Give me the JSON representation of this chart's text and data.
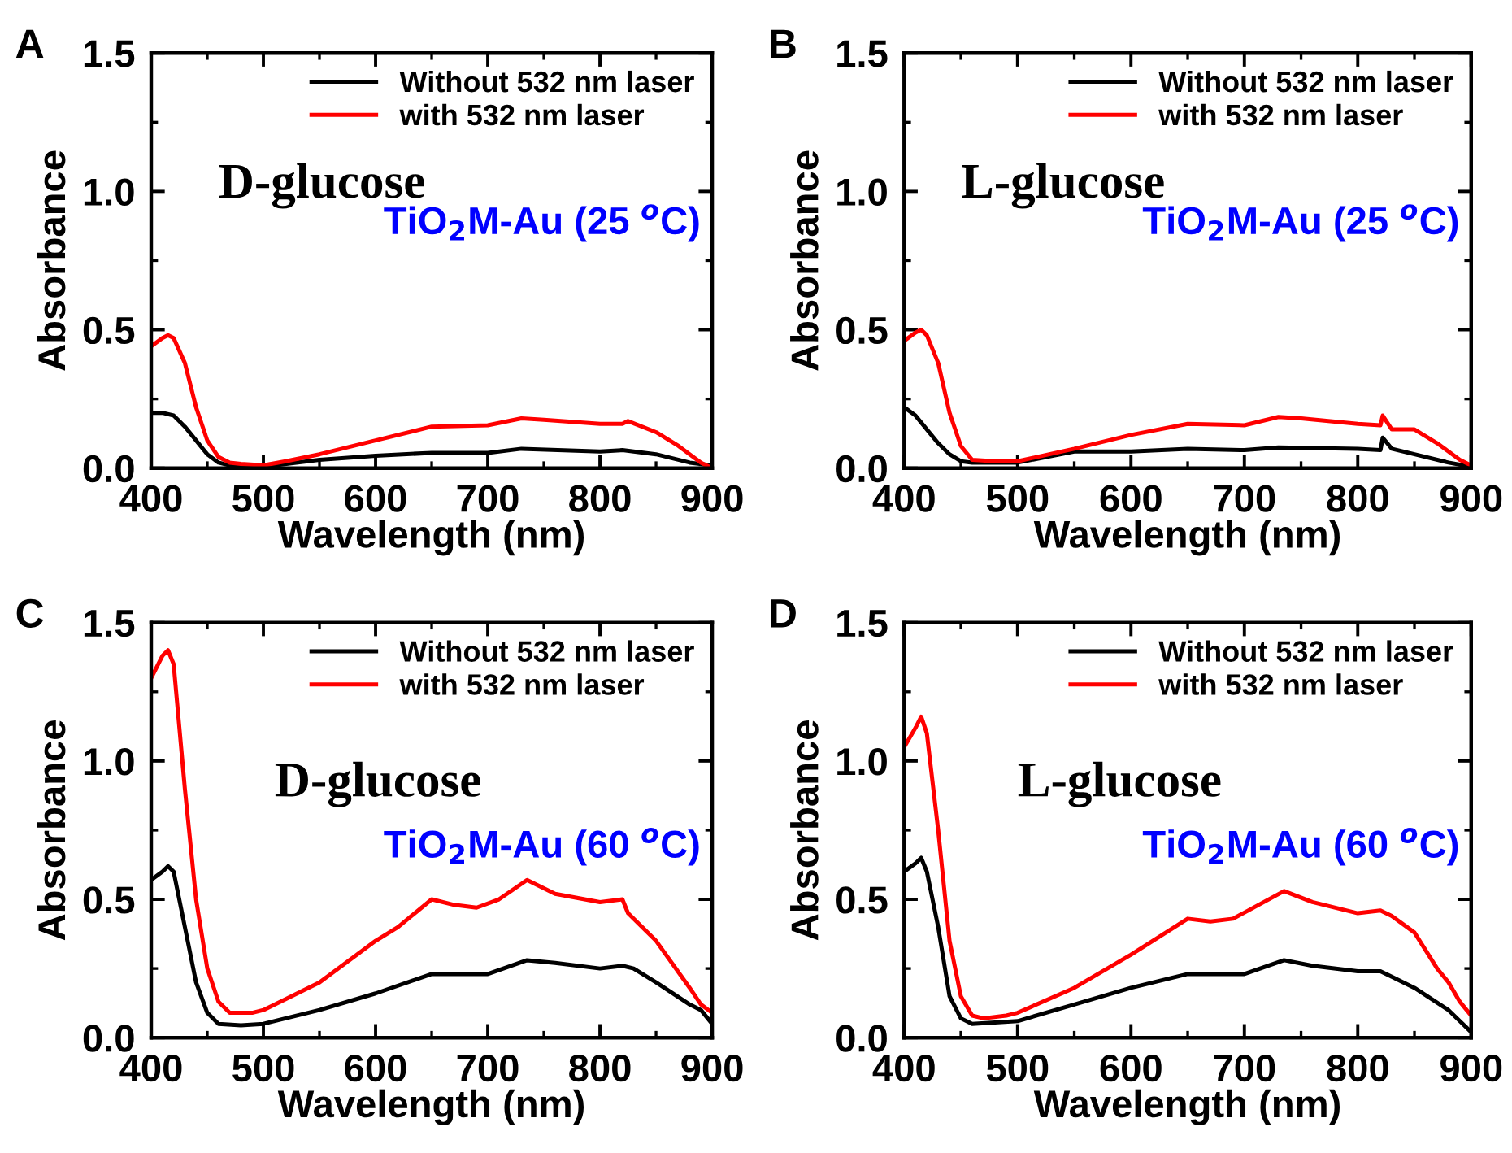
{
  "chart_data": [
    {
      "type": "line",
      "title": "A",
      "xlabel": "Wavelength (nm)",
      "ylabel": "Absorbance",
      "xlim": [
        400,
        900
      ],
      "ylim": [
        0,
        1.5
      ],
      "xticks": [
        400,
        500,
        600,
        700,
        800,
        900
      ],
      "yticks": [
        {
          "value": 0,
          "label": "0.0"
        },
        {
          "value": 0.5,
          "label": "0.5"
        },
        {
          "value": 1.0,
          "label": "1.0"
        },
        {
          "value": 1.5,
          "label": "1.5"
        }
      ],
      "legend": "top right",
      "annotations": [
        "D-glucose",
        "TiO$_{2}$M-Au (25 $^{o}$C)"
      ],
      "series": [
        {
          "name": "Without 532 nm laser",
          "color": "#000000",
          "x": [
            400,
            410,
            420,
            430,
            440,
            450,
            460,
            470,
            500,
            550,
            600,
            650,
            700,
            730,
            800,
            820,
            850,
            880,
            900
          ],
          "values": [
            0.2,
            0.2,
            0.19,
            0.15,
            0.1,
            0.05,
            0.02,
            0.01,
            0.005,
            0.03,
            0.045,
            0.055,
            0.055,
            0.07,
            0.06,
            0.065,
            0.05,
            0.02,
            0.01
          ]
        },
        {
          "name": "with 532 nm laser",
          "color": "#ff0000",
          "x": [
            400,
            410,
            415,
            420,
            430,
            440,
            450,
            460,
            470,
            480,
            500,
            520,
            550,
            600,
            650,
            700,
            730,
            750,
            800,
            820,
            825,
            850,
            870,
            880,
            890,
            900
          ],
          "values": [
            0.44,
            0.47,
            0.48,
            0.47,
            0.38,
            0.22,
            0.1,
            0.04,
            0.02,
            0.015,
            0.01,
            0.025,
            0.05,
            0.1,
            0.15,
            0.155,
            0.18,
            0.175,
            0.16,
            0.16,
            0.17,
            0.13,
            0.08,
            0.05,
            0.02,
            0.0
          ]
        }
      ]
    },
    {
      "type": "line",
      "title": "B",
      "xlabel": "Wavelength (nm)",
      "ylabel": "Absorbance",
      "xlim": [
        400,
        900
      ],
      "ylim": [
        0,
        1.5
      ],
      "xticks": [
        400,
        500,
        600,
        700,
        800,
        900
      ],
      "yticks": [
        {
          "value": 0,
          "label": "0.0"
        },
        {
          "value": 0.5,
          "label": "0.5"
        },
        {
          "value": 1.0,
          "label": "1.0"
        },
        {
          "value": 1.5,
          "label": "1.5"
        }
      ],
      "legend": "top right",
      "annotations": [
        "L-glucose",
        "TiO$_{2}$M-Au (25 $^{o}$C)"
      ],
      "series": [
        {
          "name": "Without 532 nm laser",
          "color": "#000000",
          "x": [
            400,
            410,
            420,
            430,
            440,
            450,
            460,
            500,
            550,
            600,
            650,
            700,
            730,
            800,
            820,
            822,
            830,
            850,
            880,
            900
          ],
          "values": [
            0.22,
            0.19,
            0.14,
            0.09,
            0.05,
            0.025,
            0.02,
            0.02,
            0.06,
            0.06,
            0.07,
            0.065,
            0.075,
            0.07,
            0.065,
            0.11,
            0.07,
            0.05,
            0.02,
            0.005
          ]
        },
        {
          "name": "with 532 nm laser",
          "color": "#ff0000",
          "x": [
            400,
            410,
            415,
            420,
            430,
            440,
            450,
            460,
            480,
            500,
            550,
            600,
            650,
            700,
            730,
            750,
            800,
            820,
            822,
            830,
            850,
            870,
            880,
            890,
            900
          ],
          "values": [
            0.46,
            0.49,
            0.5,
            0.48,
            0.38,
            0.2,
            0.08,
            0.03,
            0.025,
            0.025,
            0.07,
            0.12,
            0.16,
            0.155,
            0.185,
            0.18,
            0.16,
            0.155,
            0.19,
            0.14,
            0.14,
            0.09,
            0.06,
            0.03,
            0.01
          ]
        }
      ]
    },
    {
      "type": "line",
      "title": "C",
      "xlabel": "Wavelength (nm)",
      "ylabel": "Absorbance",
      "xlim": [
        400,
        900
      ],
      "ylim": [
        0,
        1.5
      ],
      "xticks": [
        400,
        500,
        600,
        700,
        800,
        900
      ],
      "yticks": [
        {
          "value": 0,
          "label": "0.0"
        },
        {
          "value": 0.5,
          "label": "0.5"
        },
        {
          "value": 1.0,
          "label": "1.0"
        },
        {
          "value": 1.5,
          "label": "1.5"
        }
      ],
      "legend": "top right",
      "annotations": [
        "D-glucose",
        "TiO$_{2}$M-Au (60 $^{o}$C)"
      ],
      "series": [
        {
          "name": "Without 532 nm laser",
          "color": "#000000",
          "x": [
            400,
            410,
            415,
            420,
            430,
            440,
            450,
            460,
            480,
            500,
            550,
            600,
            650,
            700,
            735,
            760,
            800,
            820,
            830,
            850,
            880,
            890,
            900
          ],
          "values": [
            0.57,
            0.6,
            0.62,
            0.6,
            0.4,
            0.2,
            0.09,
            0.05,
            0.045,
            0.05,
            0.1,
            0.16,
            0.23,
            0.23,
            0.28,
            0.27,
            0.25,
            0.26,
            0.25,
            0.2,
            0.12,
            0.1,
            0.05
          ]
        },
        {
          "name": "with 532 nm laser",
          "color": "#ff0000",
          "x": [
            400,
            410,
            415,
            420,
            430,
            440,
            450,
            460,
            470,
            490,
            500,
            550,
            600,
            620,
            650,
            670,
            690,
            710,
            735,
            760,
            800,
            820,
            825,
            850,
            880,
            890,
            900
          ],
          "values": [
            1.3,
            1.38,
            1.4,
            1.35,
            0.9,
            0.5,
            0.25,
            0.13,
            0.09,
            0.09,
            0.1,
            0.2,
            0.35,
            0.4,
            0.5,
            0.48,
            0.47,
            0.5,
            0.57,
            0.52,
            0.49,
            0.5,
            0.45,
            0.35,
            0.18,
            0.12,
            0.09
          ]
        }
      ]
    },
    {
      "type": "line",
      "title": "D",
      "xlabel": "Wavelength (nm)",
      "ylabel": "Absorbance",
      "xlim": [
        400,
        900
      ],
      "ylim": [
        0,
        1.5
      ],
      "xticks": [
        400,
        500,
        600,
        700,
        800,
        900
      ],
      "yticks": [
        {
          "value": 0,
          "label": "0.0"
        },
        {
          "value": 0.5,
          "label": "0.5"
        },
        {
          "value": 1.0,
          "label": "1.0"
        },
        {
          "value": 1.5,
          "label": "1.5"
        }
      ],
      "legend": "top right",
      "annotations": [
        "L-glucose",
        "TiO$_{2}$M-Au (60 $^{o}$C)"
      ],
      "series": [
        {
          "name": "Without 532 nm laser",
          "color": "#000000",
          "x": [
            400,
            410,
            415,
            420,
            430,
            440,
            450,
            460,
            500,
            550,
            600,
            650,
            700,
            735,
            760,
            800,
            820,
            830,
            850,
            880,
            890,
            900
          ],
          "values": [
            0.6,
            0.63,
            0.65,
            0.6,
            0.4,
            0.15,
            0.07,
            0.05,
            0.06,
            0.12,
            0.18,
            0.23,
            0.23,
            0.28,
            0.26,
            0.24,
            0.24,
            0.22,
            0.18,
            0.1,
            0.06,
            0.02
          ]
        },
        {
          "name": "with 532 nm laser",
          "color": "#ff0000",
          "x": [
            400,
            410,
            415,
            420,
            430,
            440,
            450,
            460,
            470,
            490,
            500,
            550,
            600,
            650,
            670,
            690,
            735,
            760,
            800,
            820,
            830,
            850,
            870,
            880,
            890,
            900
          ],
          "values": [
            1.05,
            1.12,
            1.16,
            1.1,
            0.75,
            0.35,
            0.15,
            0.08,
            0.07,
            0.08,
            0.09,
            0.18,
            0.3,
            0.43,
            0.42,
            0.43,
            0.53,
            0.49,
            0.45,
            0.46,
            0.44,
            0.38,
            0.25,
            0.2,
            0.13,
            0.08
          ]
        }
      ]
    }
  ]
}
